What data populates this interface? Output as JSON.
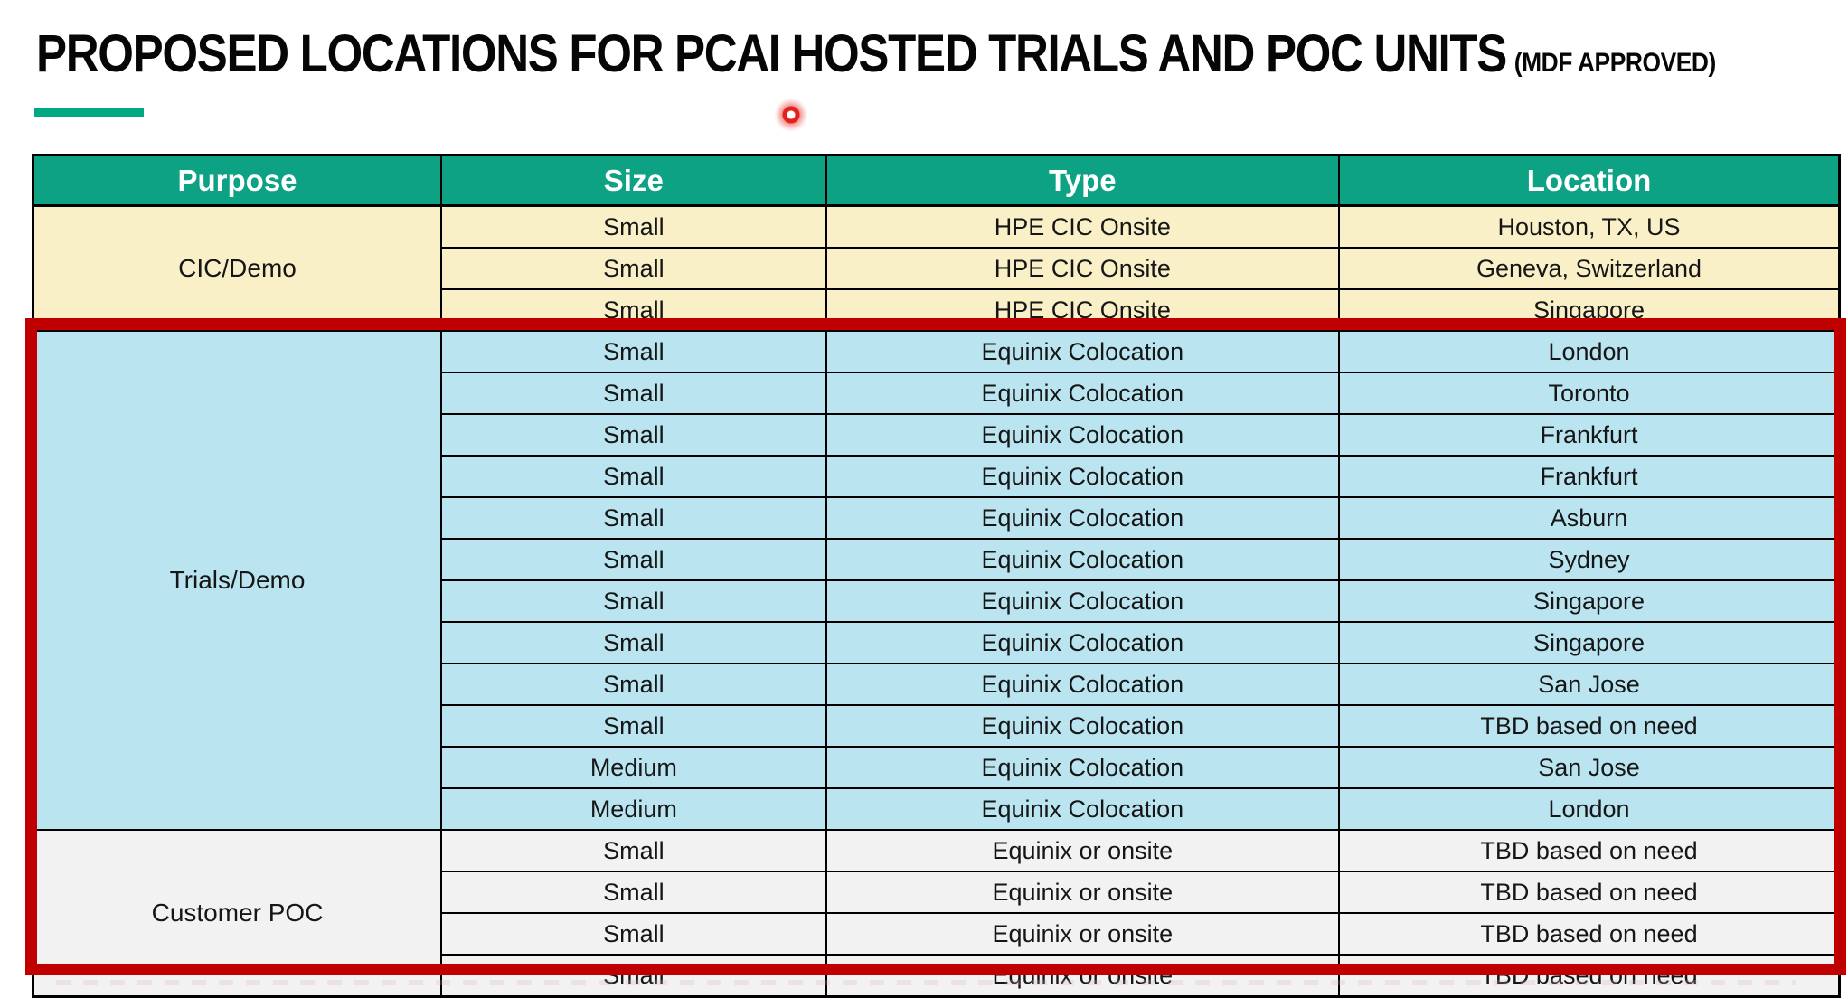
{
  "title": {
    "main": "PROPOSED LOCATIONS FOR PCAI HOSTED TRIALS AND POC UNITS",
    "suffix": "(MDF APPROVED)"
  },
  "colors": {
    "accent_green": "#01A982",
    "header_bg": "#0EA284",
    "header_fg": "#FFFFFF",
    "cic_demo_bg": "#FAF0C8",
    "trials_demo_bg": "#BAE5F0",
    "customer_poc_bg": "#F2F2F2",
    "highlight_red": "#C00000",
    "laser_red": "#E3201B",
    "cell_border": "#000000"
  },
  "laser_pointer": {
    "present": true
  },
  "table": {
    "columns": [
      "Purpose",
      "Size",
      "Type",
      "Location"
    ],
    "sections": [
      {
        "purpose": "CIC/Demo",
        "bg_key": "cic_demo_bg",
        "highlighted": false,
        "rows": [
          [
            "Small",
            "HPE CIC Onsite",
            "Houston, TX, US"
          ],
          [
            "Small",
            "HPE CIC Onsite",
            "Geneva, Switzerland"
          ],
          [
            "Small",
            "HPE CIC Onsite",
            "Singapore"
          ]
        ]
      },
      {
        "purpose": "Trials/Demo",
        "bg_key": "trials_demo_bg",
        "highlighted": true,
        "rows": [
          [
            "Small",
            "Equinix Colocation",
            "London"
          ],
          [
            "Small",
            "Equinix Colocation",
            "Toronto"
          ],
          [
            "Small",
            "Equinix Colocation",
            "Frankfurt"
          ],
          [
            "Small",
            "Equinix Colocation",
            "Frankfurt"
          ],
          [
            "Small",
            "Equinix Colocation",
            "Asburn"
          ],
          [
            "Small",
            "Equinix Colocation",
            "Sydney"
          ],
          [
            "Small",
            "Equinix Colocation",
            "Singapore"
          ],
          [
            "Small",
            "Equinix Colocation",
            "Singapore"
          ],
          [
            "Small",
            "Equinix Colocation",
            "San Jose"
          ],
          [
            "Small",
            "Equinix Colocation",
            "TBD based on need"
          ],
          [
            "Medium",
            "Equinix Colocation",
            "San Jose"
          ],
          [
            "Medium",
            "Equinix Colocation",
            "London"
          ]
        ]
      },
      {
        "purpose": "Customer POC",
        "bg_key": "customer_poc_bg",
        "highlighted": true,
        "rows": [
          [
            "Small",
            "Equinix or onsite",
            "TBD based on need"
          ],
          [
            "Small",
            "Equinix or onsite",
            "TBD based on need"
          ],
          [
            "Small",
            "Equinix or onsite",
            "TBD based on need"
          ],
          [
            "Small",
            "Equinix or onsite",
            "TBD based on need"
          ]
        ]
      }
    ]
  }
}
